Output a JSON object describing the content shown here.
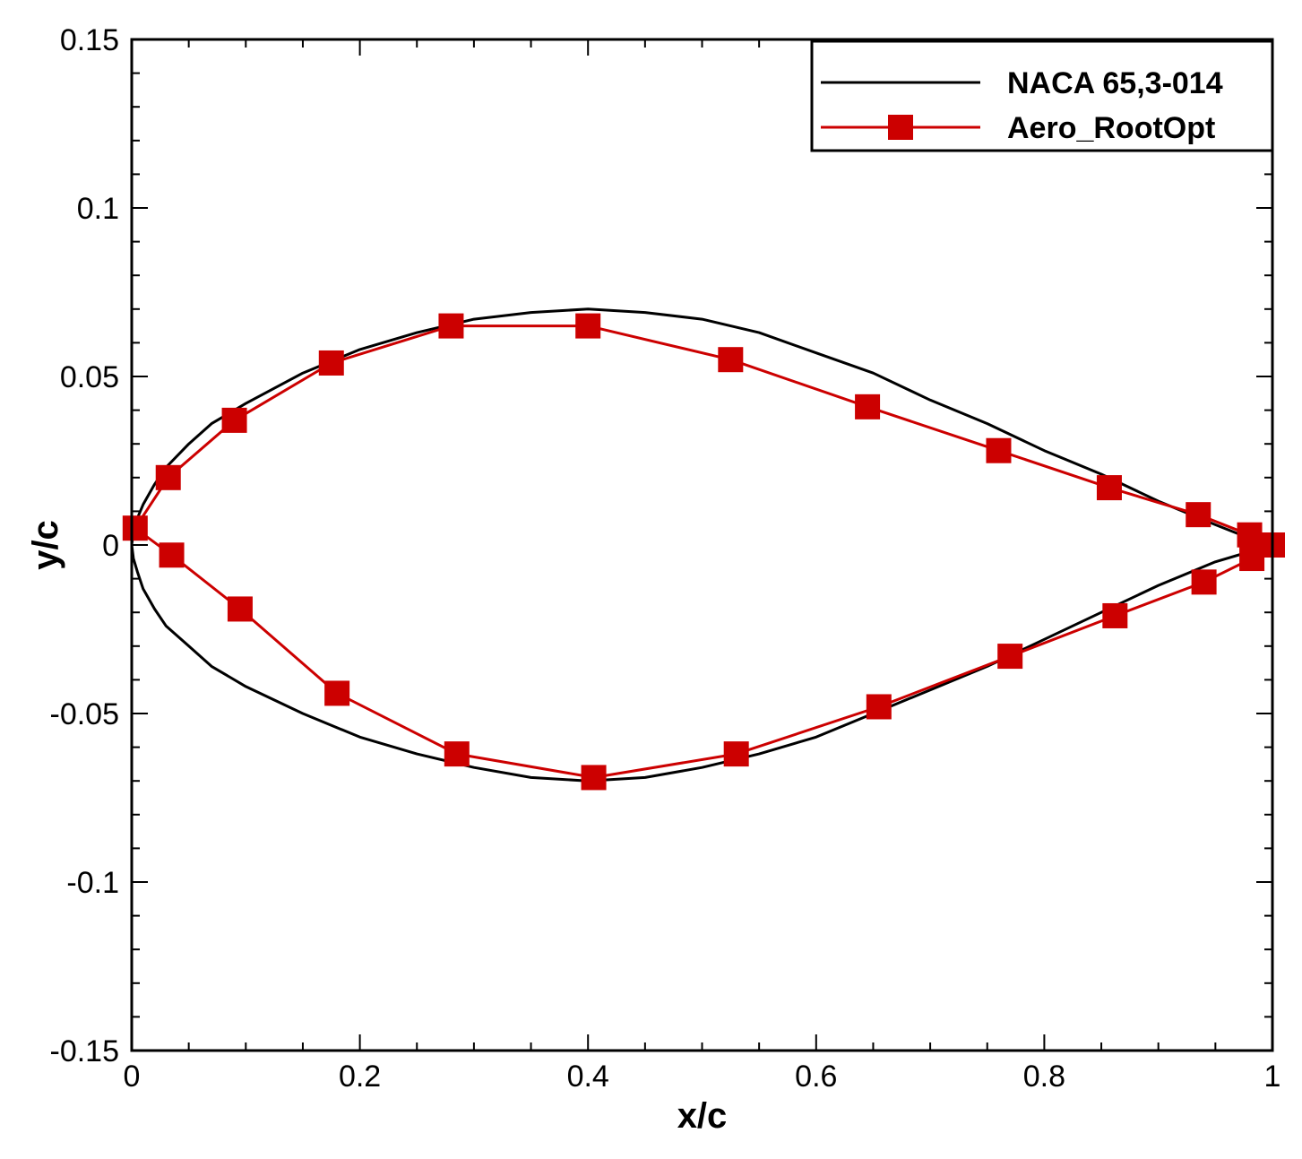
{
  "chart_data": {
    "type": "line",
    "title": "",
    "xlabel": "x/c",
    "ylabel": "y/c",
    "xlim": [
      0,
      1
    ],
    "ylim": [
      -0.15,
      0.15
    ],
    "x_ticks": [
      "0",
      "0.2",
      "0.4",
      "0.6",
      "0.8",
      "1"
    ],
    "y_ticks": [
      "0.15",
      "0.1",
      "0.05",
      "0",
      "-0.05",
      "-0.1",
      "-0.15"
    ],
    "legend_position": "top-right",
    "colors": {
      "naca": "#000000",
      "opt": "#cc0000"
    },
    "series": [
      {
        "name": "NACA 65,3-014",
        "marker": "none",
        "points": [
          [
            1.0,
            0.0
          ],
          [
            0.98,
            0.002
          ],
          [
            0.95,
            0.006
          ],
          [
            0.9,
            0.013
          ],
          [
            0.85,
            0.021
          ],
          [
            0.8,
            0.028
          ],
          [
            0.75,
            0.036
          ],
          [
            0.7,
            0.043
          ],
          [
            0.65,
            0.051
          ],
          [
            0.6,
            0.057
          ],
          [
            0.55,
            0.063
          ],
          [
            0.5,
            0.067
          ],
          [
            0.45,
            0.069
          ],
          [
            0.4,
            0.07
          ],
          [
            0.35,
            0.069
          ],
          [
            0.3,
            0.067
          ],
          [
            0.25,
            0.063
          ],
          [
            0.2,
            0.058
          ],
          [
            0.15,
            0.051
          ],
          [
            0.1,
            0.042
          ],
          [
            0.07,
            0.036
          ],
          [
            0.05,
            0.03
          ],
          [
            0.03,
            0.023
          ],
          [
            0.02,
            0.018
          ],
          [
            0.01,
            0.012
          ],
          [
            0.005,
            0.008
          ],
          [
            0.0015,
            0.004
          ],
          [
            0.0,
            0.0
          ],
          [
            0.0015,
            -0.004
          ],
          [
            0.005,
            -0.008
          ],
          [
            0.01,
            -0.013
          ],
          [
            0.02,
            -0.019
          ],
          [
            0.03,
            -0.024
          ],
          [
            0.05,
            -0.03
          ],
          [
            0.07,
            -0.036
          ],
          [
            0.1,
            -0.042
          ],
          [
            0.15,
            -0.05
          ],
          [
            0.2,
            -0.057
          ],
          [
            0.25,
            -0.062
          ],
          [
            0.3,
            -0.066
          ],
          [
            0.35,
            -0.069
          ],
          [
            0.4,
            -0.07
          ],
          [
            0.45,
            -0.069
          ],
          [
            0.5,
            -0.066
          ],
          [
            0.55,
            -0.062
          ],
          [
            0.6,
            -0.057
          ],
          [
            0.65,
            -0.05
          ],
          [
            0.7,
            -0.043
          ],
          [
            0.75,
            -0.036
          ],
          [
            0.8,
            -0.028
          ],
          [
            0.85,
            -0.02
          ],
          [
            0.9,
            -0.012
          ],
          [
            0.95,
            -0.005
          ],
          [
            0.98,
            -0.002
          ],
          [
            1.0,
            0.0
          ]
        ]
      },
      {
        "name": "Aero_RootOpt",
        "marker": "square",
        "points": [
          [
            1.0,
            0.0
          ],
          [
            0.98,
            0.003
          ],
          [
            0.935,
            0.009
          ],
          [
            0.857,
            0.017
          ],
          [
            0.76,
            0.028
          ],
          [
            0.645,
            0.041
          ],
          [
            0.525,
            0.055
          ],
          [
            0.4,
            0.065
          ],
          [
            0.28,
            0.065
          ],
          [
            0.175,
            0.054
          ],
          [
            0.09,
            0.037
          ],
          [
            0.032,
            0.02
          ],
          [
            0.003,
            0.005
          ],
          [
            0.035,
            -0.003
          ],
          [
            0.095,
            -0.019
          ],
          [
            0.18,
            -0.044
          ],
          [
            0.285,
            -0.062
          ],
          [
            0.405,
            -0.069
          ],
          [
            0.53,
            -0.062
          ],
          [
            0.655,
            -0.048
          ],
          [
            0.77,
            -0.033
          ],
          [
            0.862,
            -0.021
          ],
          [
            0.94,
            -0.011
          ],
          [
            0.982,
            -0.004
          ],
          [
            1.0,
            0.0
          ]
        ]
      }
    ]
  }
}
